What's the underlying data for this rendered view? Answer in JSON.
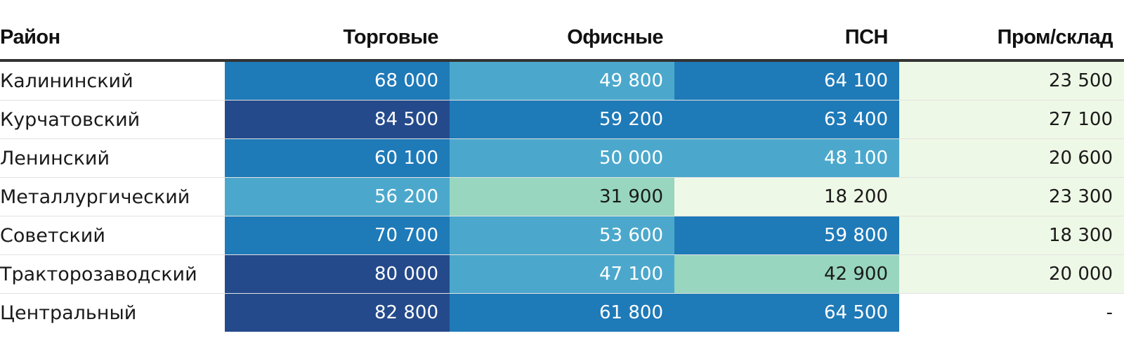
{
  "chart_data": {
    "type": "table",
    "columns": [
      "Район",
      "Торговые",
      "Офисные",
      "ПСН",
      "Пром/склад"
    ],
    "rows": [
      {
        "district": "Калининский",
        "values": [
          "68 000",
          "49 800",
          "64 100",
          "23 500"
        ]
      },
      {
        "district": "Курчатовский",
        "values": [
          "84 500",
          "59 200",
          "63 400",
          "27 100"
        ]
      },
      {
        "district": "Ленинский",
        "values": [
          "60 100",
          "50 000",
          "48 100",
          "20 600"
        ]
      },
      {
        "district": "Металлургический",
        "values": [
          "56 200",
          "31 900",
          "18 200",
          "23 300"
        ]
      },
      {
        "district": "Советский",
        "values": [
          "70 700",
          "53 600",
          "59 800",
          "18 300"
        ]
      },
      {
        "district": "Тракторозаводский",
        "values": [
          "80 000",
          "47 100",
          "42 900",
          "20 000"
        ]
      },
      {
        "district": "Центральный",
        "values": [
          "82 800",
          "61 800",
          "64 500",
          "-"
        ]
      }
    ],
    "color_scale": [
      {
        "min": 0,
        "max": 30000,
        "color": "#eef8e6",
        "text": "#1a1a1a"
      },
      {
        "min": 30000,
        "max": 45000,
        "color": "#98d6c0",
        "text": "#1a1a1a"
      },
      {
        "min": 45000,
        "max": 58000,
        "color": "#4ba8cc",
        "text": "#ffffff"
      },
      {
        "min": 58000,
        "max": 80000,
        "color": "#1f7ab8",
        "text": "#ffffff"
      },
      {
        "min": 80000,
        "max": 1000000,
        "color": "#244a8b",
        "text": "#ffffff"
      }
    ],
    "missing_color": "#ffffff"
  }
}
